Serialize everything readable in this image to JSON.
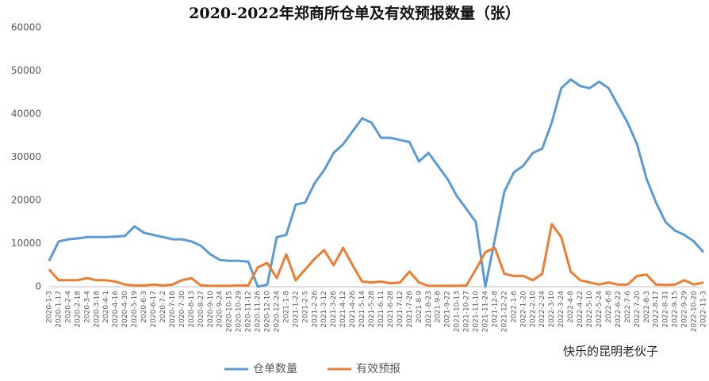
{
  "chart_data": {
    "type": "line",
    "title": "2020-2022年郑商所仓单及有效预报数量（张）",
    "watermark": "快乐的昆明老伙子",
    "categories": [
      "2020-1-3",
      "2020-1-17",
      "2020-2-4",
      "2020-2-18",
      "2020-3-4",
      "2020-3-18",
      "2020-4-1",
      "2020-4-16",
      "2020-4-30",
      "2020-5-19",
      "2020-6-3",
      "2020-6-17",
      "2020-7-2",
      "2020-7-16",
      "2020-7-30",
      "2020-8-13",
      "2020-8-27",
      "2020-9-10",
      "2020-9-24",
      "2020-10-15",
      "2020-10-29",
      "2020-11-12",
      "2020-11-26",
      "2020-12-10",
      "2020-12-24",
      "2021-1-8",
      "2021-1-22",
      "2021-2-5",
      "2021-2-26",
      "2021-3-12",
      "2021-3-26",
      "2021-4-12",
      "2021-4-26",
      "2021-5-14",
      "2021-5-28",
      "2021-6-11",
      "2021-6-28",
      "2021-7-12",
      "2021-7-26",
      "2021-8-9",
      "2021-8-23",
      "2021-9-6",
      "2021-9-22",
      "2021-10-13",
      "2021-10-27",
      "2021-11-10",
      "2021-11-24",
      "2021-12-8",
      "2021-12-22",
      "2022-1-6",
      "2022-1-20",
      "2022-2-10",
      "2022-2-24",
      "2022-3-10",
      "2022-3-24",
      "2022-4-8",
      "2022-4-22",
      "2022-5-10",
      "2022-5-24",
      "2022-6-8",
      "2022-6-22",
      "2022-7-6",
      "2022-7-20",
      "2022-8-3",
      "2022-8-17",
      "2022-8-31",
      "2022-9-15",
      "2022-9-29",
      "2022-10-20",
      "2022-11-3"
    ],
    "series": [
      {
        "name": "仓单数量",
        "color": "#5b9bd5",
        "values": [
          6000,
          10500,
          11000,
          11200,
          11500,
          11500,
          11500,
          11600,
          11800,
          14000,
          12500,
          12000,
          11500,
          11000,
          11000,
          10500,
          9500,
          7500,
          6200,
          6000,
          6000,
          5800,
          0,
          500,
          11500,
          12000,
          19000,
          19500,
          24000,
          27000,
          31000,
          33000,
          36000,
          39000,
          38000,
          34500,
          34500,
          34000,
          33500,
          29000,
          31000,
          28000,
          25000,
          21000,
          18000,
          15000,
          0,
          11000,
          22000,
          26500,
          28000,
          31000,
          32000,
          38000,
          46000,
          48000,
          46500,
          46000,
          47500,
          46000,
          42000,
          38000,
          33000,
          25000,
          19500,
          15000,
          13000,
          12000,
          10500,
          8000
        ]
      },
      {
        "name": "有效预报",
        "color": "#ed7d31",
        "values": [
          4000,
          1500,
          1500,
          1500,
          2000,
          1500,
          1500,
          1200,
          500,
          300,
          300,
          500,
          300,
          500,
          1500,
          2000,
          300,
          200,
          200,
          200,
          300,
          300,
          4500,
          5500,
          2000,
          7500,
          1500,
          4000,
          6500,
          8500,
          5000,
          9000,
          5000,
          1200,
          1000,
          1200,
          800,
          1000,
          3500,
          1000,
          200,
          200,
          200,
          200,
          300,
          4000,
          8000,
          9000,
          3000,
          2500,
          2500,
          1500,
          3000,
          14500,
          11500,
          3500,
          1500,
          1000,
          500,
          1000,
          500,
          500,
          2500,
          2800,
          500,
          400,
          500,
          1500,
          500,
          1000
        ]
      }
    ],
    "ylim": [
      0,
      60000
    ],
    "yticks": [
      0,
      10000,
      20000,
      30000,
      40000,
      50000,
      60000
    ],
    "grid": false,
    "legend": "bottom"
  }
}
